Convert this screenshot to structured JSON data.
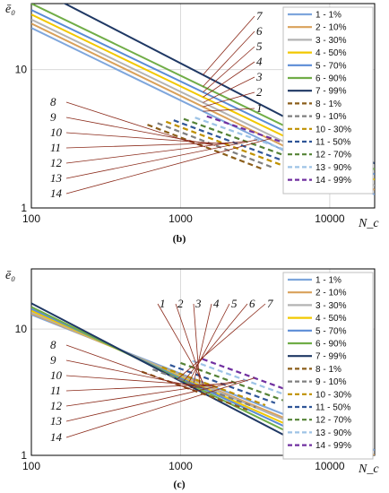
{
  "chart_data": [
    {
      "type": "line",
      "panel_label": "(b)",
      "ylabel": "ē₀",
      "xlabel": "N_c",
      "x_scale": "log",
      "y_scale": "log",
      "xlim": [
        100,
        20000
      ],
      "ylim": [
        1,
        30
      ],
      "x_ticks": [
        "100",
        "1000",
        "10000"
      ],
      "y_ticks": [
        "1",
        "10"
      ],
      "grid": true,
      "legend_position": "top-right",
      "series": [
        {
          "name": "1 - 1%",
          "color": "#7ea6dc",
          "dash": false,
          "label": "1",
          "x": [
            100,
            20000
          ],
          "y": [
            20,
            1.25
          ]
        },
        {
          "name": "2 - 10%",
          "color": "#d9a15a",
          "dash": false,
          "label": "2",
          "x": [
            100,
            20000
          ],
          "y": [
            21.5,
            1.35
          ]
        },
        {
          "name": "3 - 30%",
          "color": "#b3b3b3",
          "dash": false,
          "label": "3",
          "x": [
            100,
            20000
          ],
          "y": [
            23,
            1.45
          ]
        },
        {
          "name": "4 - 50%",
          "color": "#f2c800",
          "dash": false,
          "label": "4",
          "x": [
            100,
            20000
          ],
          "y": [
            25,
            1.6
          ]
        },
        {
          "name": "5 - 70%",
          "color": "#5b8cd6",
          "dash": false,
          "label": "5",
          "x": [
            100,
            20000
          ],
          "y": [
            27,
            1.75
          ]
        },
        {
          "name": "6 - 90%",
          "color": "#70ad47",
          "dash": false,
          "label": "6",
          "x": [
            100,
            20000
          ],
          "y": [
            30,
            1.9
          ]
        },
        {
          "name": "7 - 99%",
          "color": "#1f3864",
          "dash": false,
          "label": "7",
          "x": [
            100,
            20000
          ],
          "y": [
            40,
            2.1
          ]
        },
        {
          "name": "8 - 1%",
          "color": "#8b5e1a",
          "dash": true,
          "label": "8",
          "x": [
            600,
            3600
          ],
          "y": [
            4.0,
            1.9
          ]
        },
        {
          "name": "9 - 10%",
          "color": "#7f7f7f",
          "dash": true,
          "label": "9",
          "x": [
            700,
            4200
          ],
          "y": [
            4.1,
            1.95
          ]
        },
        {
          "name": "10 - 30%",
          "color": "#bf9000",
          "dash": true,
          "label": "10",
          "x": [
            800,
            5000
          ],
          "y": [
            4.2,
            2.0
          ]
        },
        {
          "name": "11 - 50%",
          "color": "#2f5597",
          "dash": true,
          "label": "11",
          "x": [
            900,
            5800
          ],
          "y": [
            4.3,
            2.05
          ]
        },
        {
          "name": "12 - 70%",
          "color": "#548235",
          "dash": true,
          "label": "12",
          "x": [
            1050,
            7000
          ],
          "y": [
            4.4,
            2.1
          ]
        },
        {
          "name": "13 - 90%",
          "color": "#9dc3e6",
          "dash": true,
          "label": "13",
          "x": [
            1250,
            8500
          ],
          "y": [
            4.5,
            2.15
          ]
        },
        {
          "name": "14 - 99%",
          "color": "#7030a0",
          "dash": true,
          "label": "14",
          "x": [
            1500,
            11000
          ],
          "y": [
            4.6,
            2.2
          ]
        }
      ]
    },
    {
      "type": "line",
      "panel_label": "(c)",
      "ylabel": "ē₀",
      "xlabel": "N_c",
      "x_scale": "log",
      "y_scale": "log",
      "xlim": [
        100,
        20000
      ],
      "ylim": [
        1,
        30
      ],
      "x_ticks": [
        "100",
        "1000",
        "10000"
      ],
      "y_ticks": [
        "1",
        "10"
      ],
      "grid": true,
      "legend_position": "top-right",
      "series": [
        {
          "name": "1 - 1%",
          "color": "#7ea6dc",
          "dash": false,
          "label": "1",
          "x": [
            100,
            20000
          ],
          "y": [
            13,
            1.1
          ]
        },
        {
          "name": "2 - 10%",
          "color": "#d9a15a",
          "dash": false,
          "label": "2",
          "x": [
            100,
            20000
          ],
          "y": [
            13.3,
            1.0
          ]
        },
        {
          "name": "3 - 30%",
          "color": "#b3b3b3",
          "dash": false,
          "label": "3",
          "x": [
            100,
            18000
          ],
          "y": [
            13.6,
            1.0
          ]
        },
        {
          "name": "4 - 50%",
          "color": "#f2c800",
          "dash": false,
          "label": "4",
          "x": [
            100,
            15000
          ],
          "y": [
            14,
            1.0
          ]
        },
        {
          "name": "5 - 70%",
          "color": "#5b8cd6",
          "dash": false,
          "label": "5",
          "x": [
            100,
            13000
          ],
          "y": [
            14.5,
            1.0
          ]
        },
        {
          "name": "6 - 90%",
          "color": "#70ad47",
          "dash": false,
          "label": "6",
          "x": [
            100,
            11000
          ],
          "y": [
            15,
            1.0
          ]
        },
        {
          "name": "7 - 99%",
          "color": "#1f3864",
          "dash": false,
          "label": "7",
          "x": [
            100,
            9000
          ],
          "y": [
            16,
            1.0
          ]
        },
        {
          "name": "8 - 1%",
          "color": "#8b5e1a",
          "dash": true,
          "label": "8",
          "x": [
            550,
            2800
          ],
          "y": [
            4.6,
            2.3
          ]
        },
        {
          "name": "9 - 10%",
          "color": "#7f7f7f",
          "dash": true,
          "label": "9",
          "x": [
            650,
            3200
          ],
          "y": [
            4.8,
            2.4
          ]
        },
        {
          "name": "10 - 30%",
          "color": "#bf9000",
          "dash": true,
          "label": "10",
          "x": [
            750,
            3700
          ],
          "y": [
            5.0,
            2.5
          ]
        },
        {
          "name": "11 - 50%",
          "color": "#2f5597",
          "dash": true,
          "label": "11",
          "x": [
            850,
            4300
          ],
          "y": [
            5.2,
            2.6
          ]
        },
        {
          "name": "12 - 70%",
          "color": "#548235",
          "dash": true,
          "label": "12",
          "x": [
            1000,
            5000
          ],
          "y": [
            5.4,
            2.7
          ]
        },
        {
          "name": "13 - 90%",
          "color": "#9dc3e6",
          "dash": true,
          "label": "13",
          "x": [
            1200,
            6000
          ],
          "y": [
            5.6,
            2.8
          ]
        },
        {
          "name": "14 - 99%",
          "color": "#7030a0",
          "dash": true,
          "label": "14",
          "x": [
            1400,
            7000
          ],
          "y": [
            5.8,
            2.9
          ]
        }
      ]
    }
  ]
}
